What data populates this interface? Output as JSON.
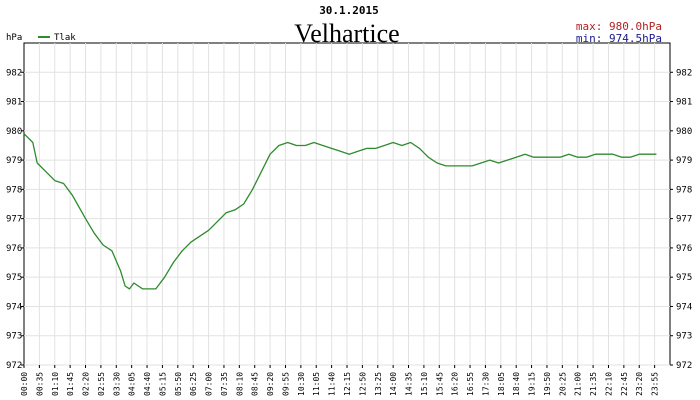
{
  "chart_data": {
    "type": "line",
    "date": "30.1.2015",
    "title": "Velhartice",
    "ylabel": "hPa",
    "ylim": [
      972,
      983
    ],
    "y_ticks": [
      972,
      973,
      974,
      975,
      976,
      977,
      978,
      979,
      980,
      981,
      982
    ],
    "stats": {
      "max": "max: 980.0hPa",
      "min": "min: 974.5hPa"
    },
    "x_ticks": [
      "00:00",
      "00:35",
      "01:10",
      "01:45",
      "02:20",
      "02:55",
      "03:30",
      "04:05",
      "04:40",
      "05:15",
      "05:50",
      "06:25",
      "07:00",
      "07:35",
      "08:10",
      "08:45",
      "09:20",
      "09:55",
      "10:30",
      "11:05",
      "11:40",
      "12:15",
      "12:50",
      "13:25",
      "14:00",
      "14:35",
      "15:10",
      "15:45",
      "16:20",
      "16:55",
      "17:30",
      "18:05",
      "18:40",
      "19:15",
      "19:50",
      "20:25",
      "21:00",
      "21:35",
      "22:10",
      "22:45",
      "23:20",
      "23:55"
    ],
    "series": [
      {
        "name": "Tlak",
        "color": "#2e8b2e",
        "x_minutes": [
          0,
          20,
          30,
          50,
          70,
          90,
          110,
          140,
          160,
          180,
          200,
          220,
          230,
          240,
          250,
          260,
          270,
          280,
          300,
          320,
          340,
          360,
          380,
          400,
          420,
          440,
          460,
          480,
          500,
          520,
          540,
          560,
          580,
          600,
          620,
          640,
          660,
          680,
          700,
          720,
          740,
          760,
          780,
          800,
          820,
          840,
          860,
          880,
          900,
          920,
          940,
          960,
          980,
          1000,
          1020,
          1040,
          1060,
          1080,
          1100,
          1120,
          1140,
          1160,
          1180,
          1200,
          1220,
          1240,
          1260,
          1280,
          1300,
          1320,
          1340,
          1360,
          1380,
          1400,
          1420,
          1439
        ],
        "values": [
          979.9,
          979.6,
          978.9,
          978.6,
          978.3,
          978.2,
          977.8,
          977.0,
          976.5,
          976.1,
          975.9,
          975.2,
          974.7,
          974.6,
          974.8,
          974.7,
          974.6,
          974.6,
          974.6,
          975.0,
          975.5,
          975.9,
          976.2,
          976.4,
          976.6,
          976.9,
          977.2,
          977.3,
          977.5,
          978.0,
          978.6,
          979.2,
          979.5,
          979.6,
          979.5,
          979.5,
          979.6,
          979.5,
          979.4,
          979.3,
          979.2,
          979.3,
          979.4,
          979.4,
          979.5,
          979.6,
          979.5,
          979.6,
          979.4,
          979.1,
          978.9,
          978.8,
          978.8,
          978.8,
          978.8,
          978.9,
          979.0,
          978.9,
          979.0,
          979.1,
          979.2,
          979.1,
          979.1,
          979.1,
          979.1,
          979.2,
          979.1,
          979.1,
          979.2,
          979.2,
          979.2,
          979.1,
          979.1,
          979.2,
          979.2,
          979.2
        ]
      }
    ]
  }
}
